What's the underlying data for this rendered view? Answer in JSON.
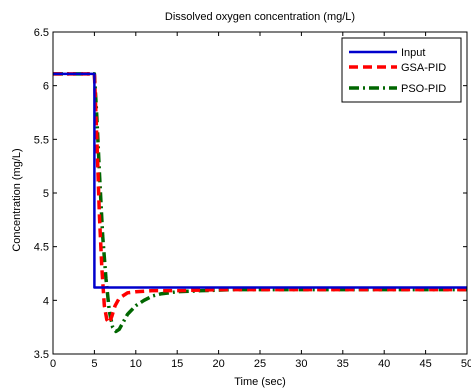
{
  "chart_data": {
    "type": "line",
    "title": "Dissolved oxygen concentration (mg/L)",
    "xlabel": "Time (sec)",
    "ylabel": "Concentration (mg/L)",
    "xlim": [
      0,
      50
    ],
    "ylim": [
      3.5,
      6.5
    ],
    "xticks": [
      0,
      5,
      10,
      15,
      20,
      25,
      30,
      35,
      40,
      45,
      50
    ],
    "yticks": [
      3.5,
      4,
      4.5,
      5,
      5.5,
      6,
      6.5
    ],
    "xtick_labels": [
      "0",
      "5",
      "10",
      "15",
      "20",
      "25",
      "30",
      "35",
      "40",
      "45",
      "50"
    ],
    "ytick_labels": [
      "3.5",
      "4",
      "4.5",
      "5",
      "5.5",
      "6",
      "6.5"
    ],
    "grid": false,
    "legend_position": "top-right",
    "series": [
      {
        "name": "Input",
        "color": "#0000cc",
        "style": "solid",
        "points": [
          [
            0,
            6.11
          ],
          [
            5.0,
            6.11
          ],
          [
            5.0,
            4.12
          ],
          [
            50,
            4.12
          ]
        ]
      },
      {
        "name": "GSA-PID",
        "color": "#ff0000",
        "style": "dashed",
        "points": [
          [
            0,
            6.11
          ],
          [
            5.0,
            6.11
          ],
          [
            5.3,
            5.5
          ],
          [
            5.6,
            4.8
          ],
          [
            5.9,
            4.3
          ],
          [
            6.2,
            3.95
          ],
          [
            6.5,
            3.82
          ],
          [
            6.8,
            3.79
          ],
          [
            7.1,
            3.85
          ],
          [
            7.5,
            3.95
          ],
          [
            8,
            4.02
          ],
          [
            9,
            4.07
          ],
          [
            10,
            4.08
          ],
          [
            12,
            4.09
          ],
          [
            15,
            4.09
          ],
          [
            20,
            4.1
          ],
          [
            30,
            4.1
          ],
          [
            40,
            4.1
          ],
          [
            50,
            4.1
          ]
        ]
      },
      {
        "name": "PSO-PID",
        "color": "#006600",
        "style": "dashdot",
        "points": [
          [
            0,
            6.11
          ],
          [
            5.0,
            6.11
          ],
          [
            5.3,
            5.7
          ],
          [
            5.6,
            5.2
          ],
          [
            6.0,
            4.6
          ],
          [
            6.4,
            4.2
          ],
          [
            6.8,
            3.9
          ],
          [
            7.2,
            3.75
          ],
          [
            7.6,
            3.71
          ],
          [
            8.0,
            3.73
          ],
          [
            8.5,
            3.8
          ],
          [
            9,
            3.87
          ],
          [
            10,
            3.95
          ],
          [
            11,
            4.0
          ],
          [
            12,
            4.04
          ],
          [
            13,
            4.06
          ],
          [
            15,
            4.08
          ],
          [
            18,
            4.09
          ],
          [
            22,
            4.1
          ],
          [
            30,
            4.1
          ],
          [
            40,
            4.1
          ],
          [
            50,
            4.1
          ]
        ]
      }
    ]
  }
}
